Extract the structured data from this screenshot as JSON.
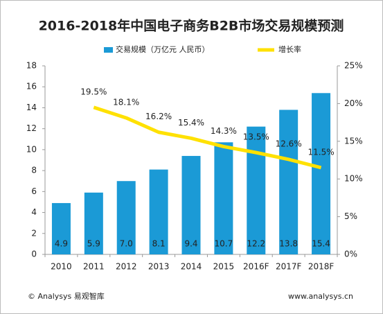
{
  "chart_data": {
    "type": "bar_line",
    "title": "2016-2018年中国电子商务B2B市场交易规模预测",
    "categories": [
      "2010",
      "2011",
      "2012",
      "2013",
      "2014",
      "2015",
      "2016F",
      "2017F",
      "2018F"
    ],
    "series": [
      {
        "name": "交易规模（万亿元 人民币）",
        "type": "bar",
        "color": "#1b9ad6",
        "values": [
          4.9,
          5.9,
          7.0,
          8.1,
          9.4,
          10.7,
          12.2,
          13.8,
          15.4
        ],
        "value_labels": [
          "4.9",
          "5.9",
          "7.0",
          "8.1",
          "9.4",
          "10.7",
          "12.2",
          "13.8",
          "15.4"
        ]
      },
      {
        "name": "增长率",
        "type": "line",
        "color": "#ffe100",
        "axis": "y2",
        "values": [
          null,
          19.5,
          18.1,
          16.2,
          15.4,
          14.3,
          13.5,
          12.6,
          11.5
        ],
        "value_labels": [
          null,
          "19.5%",
          "18.1%",
          "16.2%",
          "15.4%",
          "14.3%",
          "13.5%",
          "12.6%",
          "11.5%"
        ]
      }
    ],
    "ylim": [
      0,
      18
    ],
    "yticks": [
      0,
      2,
      4,
      6,
      8,
      10,
      12,
      14,
      16,
      18
    ],
    "y2lim": [
      0,
      25
    ],
    "y2ticks": [
      {
        "value": 0,
        "label": "0%"
      },
      {
        "value": 5,
        "label": "5%"
      },
      {
        "value": 10,
        "label": "10%"
      },
      {
        "value": 15,
        "label": "15%"
      },
      {
        "value": 20,
        "label": "20%"
      },
      {
        "value": 25,
        "label": "25%"
      }
    ],
    "grid": false,
    "source": "© Analysys 易观智库",
    "website": "www.analysys.cn"
  }
}
